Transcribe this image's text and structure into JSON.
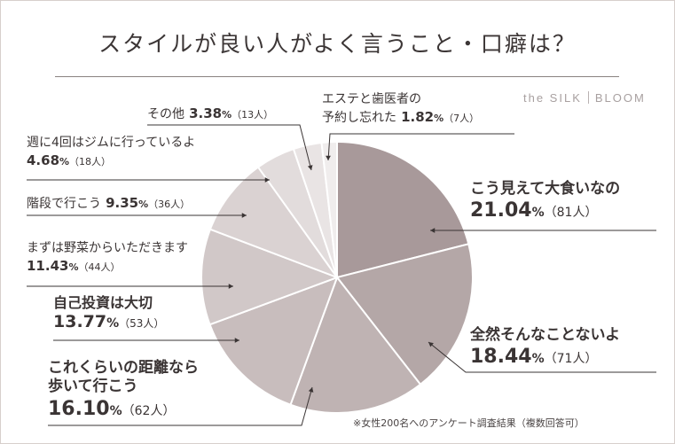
{
  "title": "スタイルが良い人がよく言うこと・口癖は？",
  "brand": {
    "left": "the SILK",
    "right": "BLOOM"
  },
  "note": "※女性200名へのアンケート調査結果（複数回答可）",
  "chart_data": {
    "type": "pie",
    "unit_percent": "%",
    "slices": [
      {
        "label": "こう見えて大食いなの",
        "percent": 21.04,
        "percent_text": "21.04",
        "count_text": "（81人）",
        "color": "#a8999a"
      },
      {
        "label": "全然そんなことないよ",
        "percent": 18.44,
        "percent_text": "18.44",
        "count_text": "（71人）",
        "color": "#b4a7a7"
      },
      {
        "label": "これくらいの距離なら歩いて行こう",
        "label_lines": [
          "これくらいの距離なら",
          "歩いて行こう"
        ],
        "percent": 16.1,
        "percent_text": "16.10",
        "count_text": "（62人）",
        "color": "#bfb3b3"
      },
      {
        "label": "自己投資は大切",
        "percent": 13.77,
        "percent_text": "13.77",
        "count_text": "（53人）",
        "color": "#c8bdbd"
      },
      {
        "label": "まずは野菜からいただきます",
        "percent": 11.43,
        "percent_text": "11.43",
        "count_text": "（44人）",
        "color": "#d1c8c8"
      },
      {
        "label": "階段で行こう",
        "percent": 9.35,
        "percent_text": "9.35",
        "count_text": "（36人）",
        "color": "#dad2d2"
      },
      {
        "label": "週に4回はジムに行っているよ",
        "percent": 4.68,
        "percent_text": "4.68",
        "count_text": "（18人）",
        "color": "#e2dcdc"
      },
      {
        "label": "その他",
        "percent": 3.38,
        "percent_text": "3.38",
        "count_text": "（13人）",
        "color": "#e9e4e4"
      },
      {
        "label": "エステと歯医者の予約し忘れた",
        "label_lines": [
          "エステと歯医者の",
          "予約し忘れた"
        ],
        "percent": 1.82,
        "percent_text": "1.82",
        "count_text": "（7人）",
        "color": "#f0eded"
      }
    ]
  }
}
